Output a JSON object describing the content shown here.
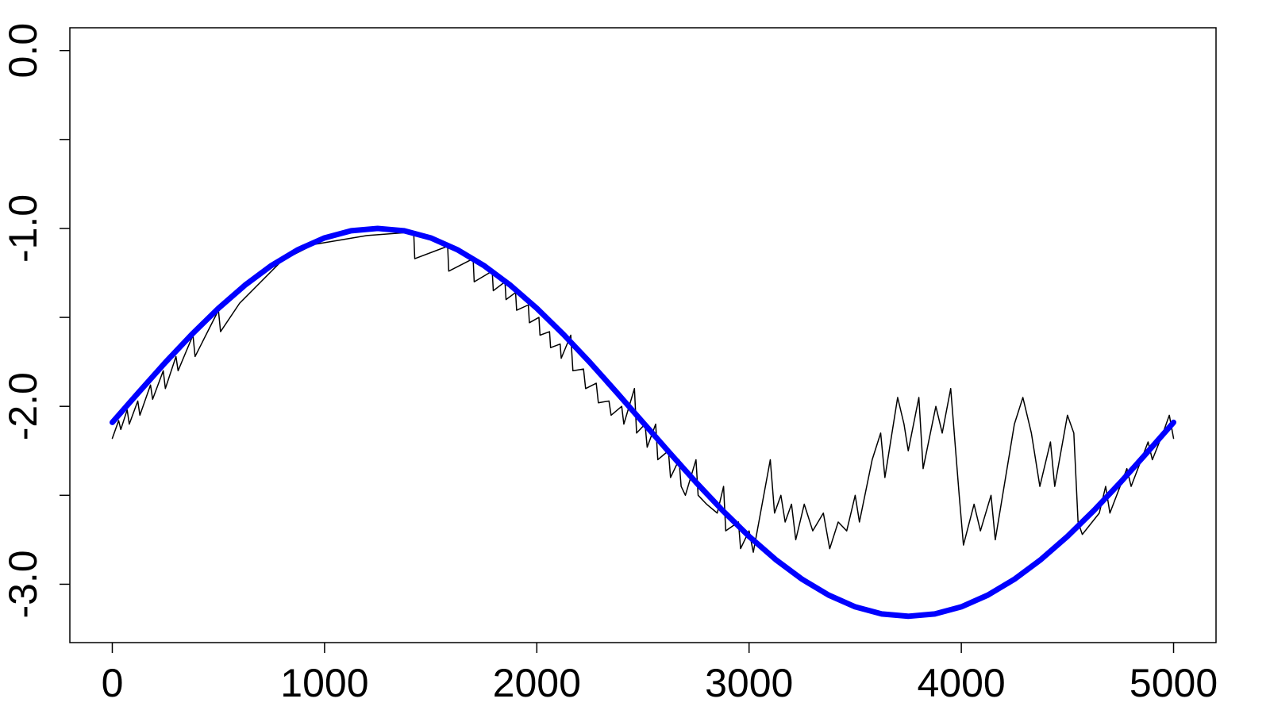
{
  "chart_data": {
    "type": "line",
    "xlim": [
      -200,
      5200
    ],
    "ylim": [
      -3.328,
      0.128
    ],
    "xticks": [
      0,
      1000,
      2000,
      3000,
      4000,
      5000
    ],
    "yticks": [
      {
        "value": 0,
        "label": "0.0"
      },
      {
        "value": -1,
        "label": "-1.0"
      },
      {
        "value": -2,
        "label": "-2.0"
      },
      {
        "value": -3,
        "label": "-3.0"
      }
    ],
    "yminor_ticks": [
      -0.5,
      -1.5,
      -2.5
    ],
    "series": [
      {
        "color": "#000000",
        "width": 1.5,
        "x": [
          0,
          30,
          40,
          70,
          80,
          120,
          130,
          180,
          190,
          240,
          250,
          300,
          310,
          380,
          390,
          500,
          510,
          600,
          700,
          800,
          950,
          1200,
          1420,
          1425,
          1580,
          1585,
          1700,
          1705,
          1790,
          1795,
          1850,
          1855,
          1900,
          1905,
          1960,
          1965,
          2010,
          2015,
          2060,
          2065,
          2110,
          2115,
          2160,
          2170,
          2220,
          2230,
          2280,
          2290,
          2340,
          2350,
          2400,
          2410,
          2460,
          2470,
          2510,
          2520,
          2560,
          2570,
          2620,
          2630,
          2670,
          2680,
          2700,
          2750,
          2760,
          2800,
          2850,
          2880,
          2890,
          2950,
          2960,
          3000,
          3020,
          3100,
          3120,
          3150,
          3170,
          3200,
          3220,
          3260,
          3300,
          3350,
          3380,
          3420,
          3460,
          3500,
          3520,
          3580,
          3620,
          3640,
          3700,
          3730,
          3750,
          3800,
          3820,
          3880,
          3910,
          3950,
          3990,
          4010,
          4060,
          4090,
          4140,
          4160,
          4250,
          4290,
          4330,
          4370,
          4420,
          4440,
          4500,
          4530,
          4550,
          4570,
          4650,
          4680,
          4700,
          4780,
          4800,
          4880,
          4900,
          4950,
          4980,
          5000
        ],
        "values": [
          -2.18,
          -2.08,
          -2.13,
          -2.02,
          -2.1,
          -1.97,
          -2.05,
          -1.88,
          -1.96,
          -1.8,
          -1.9,
          -1.72,
          -1.8,
          -1.6,
          -1.72,
          -1.46,
          -1.58,
          -1.42,
          -1.3,
          -1.18,
          -1.09,
          -1.04,
          -1.02,
          -1.17,
          -1.1,
          -1.24,
          -1.17,
          -1.3,
          -1.24,
          -1.35,
          -1.3,
          -1.4,
          -1.36,
          -1.46,
          -1.43,
          -1.53,
          -1.5,
          -1.6,
          -1.58,
          -1.67,
          -1.65,
          -1.73,
          -1.6,
          -1.8,
          -1.79,
          -1.9,
          -1.87,
          -1.98,
          -1.97,
          -2.05,
          -2.0,
          -2.1,
          -1.9,
          -2.15,
          -2.1,
          -2.23,
          -2.1,
          -2.3,
          -2.25,
          -2.4,
          -2.3,
          -2.45,
          -2.5,
          -2.3,
          -2.5,
          -2.55,
          -2.6,
          -2.45,
          -2.7,
          -2.65,
          -2.8,
          -2.7,
          -2.82,
          -2.3,
          -2.6,
          -2.5,
          -2.65,
          -2.55,
          -2.75,
          -2.55,
          -2.7,
          -2.6,
          -2.8,
          -2.65,
          -2.7,
          -2.5,
          -2.65,
          -2.3,
          -2.15,
          -2.4,
          -1.95,
          -2.1,
          -2.25,
          -1.95,
          -2.35,
          -2.0,
          -2.15,
          -1.9,
          -2.5,
          -2.78,
          -2.55,
          -2.7,
          -2.5,
          -2.75,
          -2.1,
          -1.95,
          -2.15,
          -2.45,
          -2.2,
          -2.45,
          -2.05,
          -2.15,
          -2.65,
          -2.72,
          -2.6,
          -2.45,
          -2.6,
          -2.35,
          -2.45,
          -2.2,
          -2.3,
          -2.15,
          -2.05,
          -2.18
        ]
      },
      {
        "color": "#0000ff",
        "width": 7,
        "x": [
          0,
          125,
          250,
          375,
          500,
          625,
          750,
          875,
          1000,
          1125,
          1250,
          1375,
          1500,
          1625,
          1750,
          1875,
          2000,
          2125,
          2250,
          2375,
          2500,
          2625,
          2750,
          2875,
          3000,
          3125,
          3250,
          3375,
          3500,
          3625,
          3750,
          3875,
          4000,
          4125,
          4250,
          4375,
          4500,
          4625,
          4750,
          4875,
          5000
        ],
        "values": [
          -2.09,
          -1.92,
          -1.753,
          -1.595,
          -1.449,
          -1.319,
          -1.208,
          -1.119,
          -1.053,
          -1.013,
          -1.0,
          -1.013,
          -1.053,
          -1.119,
          -1.208,
          -1.319,
          -1.449,
          -1.595,
          -1.753,
          -1.92,
          -2.09,
          -2.26,
          -2.427,
          -2.585,
          -2.731,
          -2.861,
          -2.972,
          -3.061,
          -3.127,
          -3.167,
          -3.18,
          -3.167,
          -3.127,
          -3.061,
          -2.972,
          -2.861,
          -2.731,
          -2.585,
          -2.427,
          -2.26,
          -2.09
        ]
      }
    ]
  }
}
